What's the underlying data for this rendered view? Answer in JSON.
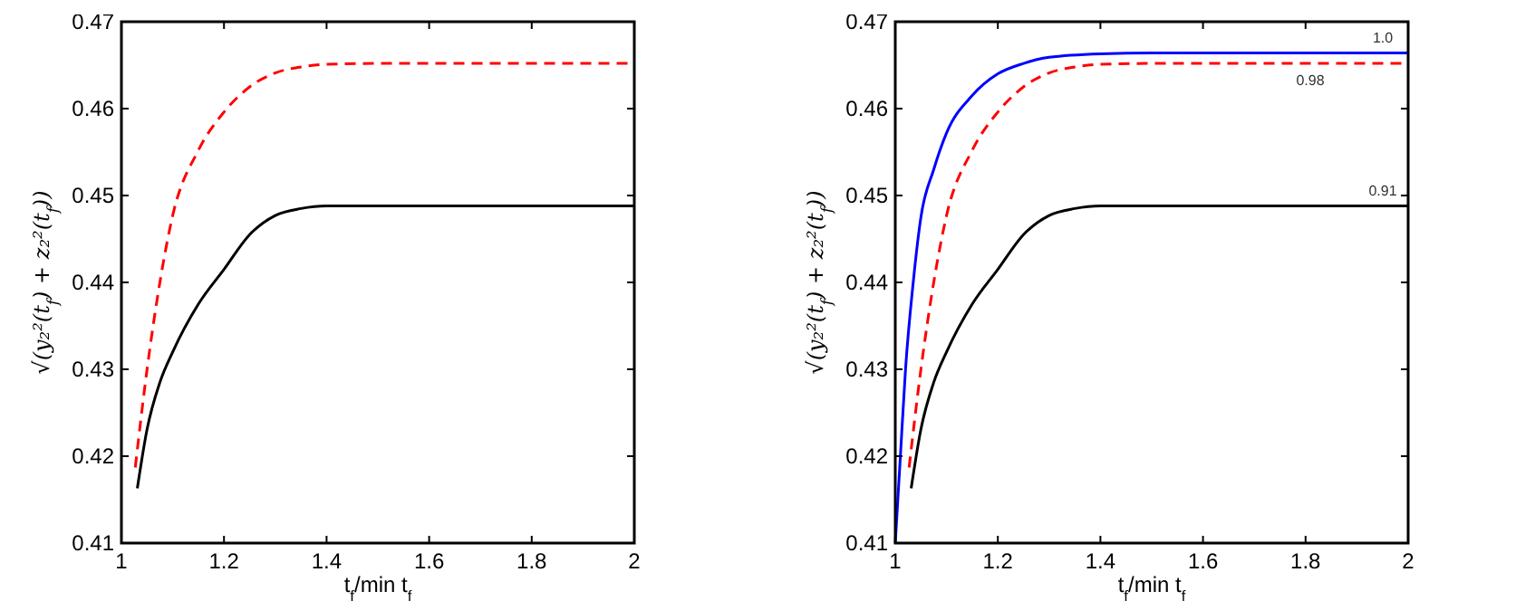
{
  "chart_data": [
    {
      "type": "line",
      "xlabel": "t$_{f}$/min t$_{f}$",
      "ylabel": "√(y₂²(t$_{f}$) + z₂²(t$_{f}$))",
      "xlim": [
        1,
        2
      ],
      "ylim": [
        0.41,
        0.47
      ],
      "xticks": [
        1,
        1.2,
        1.4,
        1.6,
        1.8,
        2
      ],
      "yticks": [
        0.41,
        0.42,
        0.43,
        0.44,
        0.45,
        0.46,
        0.47
      ],
      "grid": false,
      "series": [
        {
          "color": "#000000",
          "line_style": "solid",
          "x": [
            1.031,
            1.05,
            1.075,
            1.1,
            1.15,
            1.2,
            1.25,
            1.3,
            1.35,
            1.4,
            1.5,
            2
          ],
          "values": [
            0.4163,
            0.4231,
            0.4285,
            0.432,
            0.4375,
            0.4415,
            0.4455,
            0.4477,
            0.4485,
            0.4488,
            0.4488,
            0.4488
          ]
        },
        {
          "color": "#ff0000",
          "line_style": "dashed",
          "x": [
            1.027,
            1.05,
            1.075,
            1.1,
            1.15,
            1.2,
            1.25,
            1.3,
            1.35,
            1.4,
            1.5,
            2
          ],
          "values": [
            0.4187,
            0.43,
            0.44,
            0.4477,
            0.4552,
            0.4596,
            0.4625,
            0.4641,
            0.4648,
            0.4651,
            0.4652,
            0.4652
          ]
        }
      ]
    },
    {
      "type": "line",
      "xlabel": "t$_{f}$/min t$_{f}$",
      "ylabel": "√(y₂²(t$_{f}$) + z₂²(t$_{f}$))",
      "xlim": [
        1,
        2
      ],
      "ylim": [
        0.41,
        0.47
      ],
      "xticks": [
        1,
        1.2,
        1.4,
        1.6,
        1.8,
        2
      ],
      "yticks": [
        0.41,
        0.42,
        0.43,
        0.44,
        0.45,
        0.46,
        0.47
      ],
      "grid": false,
      "series": [
        {
          "name": "1.0",
          "color": "#0000ff",
          "line_style": "solid",
          "x": [
            1,
            1.01,
            1.02,
            1.035,
            1.05,
            1.075,
            1.1,
            1.15,
            1.2,
            1.25,
            1.3,
            1.4,
            1.5,
            2
          ],
          "values": [
            0.41,
            0.42,
            0.43,
            0.44,
            0.4475,
            0.453,
            0.4572,
            0.4615,
            0.464,
            0.4652,
            0.4659,
            0.4663,
            0.4664,
            0.4664
          ]
        },
        {
          "name": "0.98",
          "color": "#ff0000",
          "line_style": "dashed",
          "x": [
            1.027,
            1.05,
            1.075,
            1.1,
            1.15,
            1.2,
            1.25,
            1.3,
            1.35,
            1.4,
            1.5,
            2
          ],
          "values": [
            0.4187,
            0.43,
            0.44,
            0.4477,
            0.4552,
            0.4596,
            0.4625,
            0.4641,
            0.4648,
            0.4651,
            0.4652,
            0.4652
          ]
        },
        {
          "name": "0.91",
          "color": "#000000",
          "line_style": "solid",
          "x": [
            1.031,
            1.05,
            1.075,
            1.1,
            1.15,
            1.2,
            1.25,
            1.3,
            1.35,
            1.4,
            1.5,
            2
          ],
          "values": [
            0.4163,
            0.4231,
            0.4285,
            0.432,
            0.4375,
            0.4415,
            0.4455,
            0.4477,
            0.4485,
            0.4488,
            0.4488,
            0.4488
          ]
        }
      ]
    }
  ]
}
